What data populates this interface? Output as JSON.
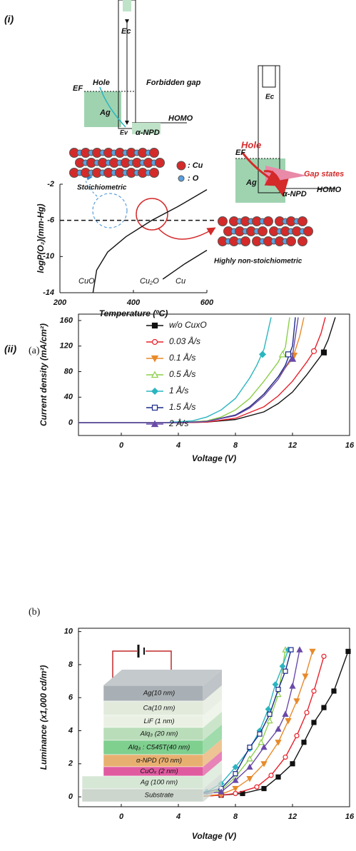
{
  "panel_labels": {
    "i": "(i)",
    "ii": "(ii)",
    "a": "(a)",
    "b": "(b)"
  },
  "diagram": {
    "ef": "EF",
    "ec": "Ec",
    "ev": "Ev",
    "hole": "Hole",
    "forbidden_gap": "Forbidden gap",
    "ag": "Ag",
    "npd": "α-NPD",
    "homo": "HOMO",
    "cu": ": Cu",
    "o": ": O",
    "stoichiometric": "Stoichiometric",
    "gap_states": "Gap states",
    "non_stoichiometric": "Highly non-stoichiometric"
  },
  "device_stack": {
    "layers": [
      "Ag(10 nm)",
      "Ca(10 nm)",
      "LiF (1 nm)",
      "Alq₃ (20 nm)",
      "Alq₃ : C545T(40 nm)",
      "α-NPD (70 nm)",
      "CuOₓ (2 nm)",
      "Ag (100 nm)",
      "Substrate"
    ],
    "colors": [
      "#a9b0b5",
      "#e2eadc",
      "#eaf1e4",
      "#b9dcb9",
      "#7fcf8f",
      "#e8b070",
      "#e05aa0",
      "#d6e7d6",
      "#cdd6cd"
    ]
  },
  "chart_data": [
    {
      "type": "line",
      "xlabel": "Temperature (ºC)",
      "ylabel": "logP(O₂)(mm-Hg)",
      "xlim": [
        200,
        600
      ],
      "ylim": [
        -14,
        -2
      ],
      "xticks": [
        200,
        400,
        600
      ],
      "yticks": [
        -2,
        -6,
        -10,
        -14
      ],
      "hline": -6,
      "annotations": [
        "CuO",
        "Cu₂O",
        "Cu"
      ],
      "series": [
        {
          "color": "#111111",
          "x": [
            290,
            300,
            330,
            380,
            450,
            520,
            600
          ],
          "values": [
            -14,
            -11.5,
            -9.5,
            -7.8,
            -6,
            -4.5,
            -2.6
          ]
        },
        {
          "color": "#111111",
          "x": [
            480,
            540,
            600
          ],
          "values": [
            -12.5,
            -10.8,
            -9.3
          ]
        }
      ]
    },
    {
      "type": "line",
      "xlabel": "Voltage (V)",
      "ylabel": "Current density (mA/cm²)",
      "xlim": [
        -3,
        16
      ],
      "ylim": [
        -20,
        170
      ],
      "xticks": [
        0,
        4,
        8,
        12,
        16
      ],
      "yticks": [
        0,
        40,
        80,
        120,
        160
      ],
      "legend": "upper left",
      "series": [
        {
          "name": "w/o CuxO",
          "color": "#111111",
          "marker": "square",
          "filled": true,
          "x": [
            -3,
            4,
            6,
            8,
            10,
            11,
            12,
            13,
            14,
            14.5,
            15
          ],
          "values": [
            0,
            0,
            1,
            5,
            17,
            30,
            48,
            75,
            105,
            130,
            165
          ],
          "marker_x": [
            14.2
          ],
          "marker_y": [
            110
          ]
        },
        {
          "name": "0.03 Å/s",
          "color": "#e8202a",
          "marker": "circle",
          "filled": false,
          "x": [
            -3,
            4,
            6,
            8,
            10,
            11,
            12,
            13,
            13.5,
            14,
            14.3
          ],
          "values": [
            0,
            0,
            1,
            7,
            25,
            42,
            65,
            95,
            112,
            140,
            165
          ],
          "marker_x": [
            13.5
          ],
          "marker_y": [
            112
          ]
        },
        {
          "name": "0.1 Å/s",
          "color": "#e88a2a",
          "marker": "triangle-down",
          "filled": true,
          "x": [
            -3,
            4,
            6,
            8,
            9,
            10,
            11,
            12,
            12.5,
            12.8
          ],
          "values": [
            0,
            0,
            2,
            12,
            25,
            45,
            72,
            100,
            135,
            165
          ],
          "marker_x": [
            12.1
          ],
          "marker_y": [
            105
          ]
        },
        {
          "name": "0.5 Å/s",
          "color": "#8ccf4a",
          "marker": "triangle-up",
          "filled": false,
          "x": [
            -3,
            4,
            6,
            7,
            8,
            9,
            10,
            11,
            11.5,
            11.8
          ],
          "values": [
            0,
            0,
            3,
            9,
            20,
            38,
            65,
            95,
            118,
            165
          ],
          "marker_x": [
            11.3
          ],
          "marker_y": [
            107
          ]
        },
        {
          "name": "1 Å/s",
          "color": "#2ab5c0",
          "marker": "diamond",
          "filled": true,
          "x": [
            -3,
            3,
            5,
            6,
            7,
            8,
            9,
            9.5,
            10,
            10.5
          ],
          "values": [
            0,
            0,
            3,
            9,
            20,
            38,
            70,
            90,
            115,
            165
          ],
          "marker_x": [
            9.9
          ],
          "marker_y": [
            107
          ]
        },
        {
          "name": "1.5 Å/s",
          "color": "#1a2a8a",
          "marker": "square",
          "filled": false,
          "x": [
            -3,
            4,
            6,
            8,
            9,
            10,
            11,
            11.5,
            12,
            12.2
          ],
          "values": [
            0,
            0,
            2,
            12,
            25,
            45,
            72,
            90,
            120,
            165
          ],
          "marker_x": [
            11.7
          ],
          "marker_y": [
            107
          ]
        },
        {
          "name": "2 Å/s",
          "color": "#6a4aa8",
          "marker": "triangle-up",
          "filled": true,
          "x": [
            -3,
            4,
            6,
            8,
            9,
            10,
            11,
            12,
            12.4
          ],
          "values": [
            0,
            0,
            2,
            11,
            23,
            42,
            68,
            105,
            165
          ],
          "marker_x": [
            12
          ],
          "marker_y": [
            100
          ]
        }
      ]
    },
    {
      "type": "line",
      "xlabel": "Voltage (V)",
      "ylabel": "Luminance (x1,000 cd/m²)",
      "xlim": [
        -3,
        16
      ],
      "ylim": [
        -0.6,
        10.2
      ],
      "xticks": [
        0,
        4,
        8,
        12,
        16
      ],
      "yticks": [
        0,
        2,
        4,
        6,
        8,
        10
      ],
      "series": [
        {
          "color": "#111111",
          "marker": "square",
          "filled": true,
          "x": [
            -2,
            -1,
            1,
            3,
            5,
            7,
            8.5,
            10,
            11,
            12,
            12.8,
            13.5,
            14.2,
            14.9,
            15.9
          ],
          "values": [
            0,
            0,
            0,
            0,
            0,
            0.1,
            0.2,
            0.5,
            1.2,
            2,
            3.3,
            4.5,
            5.4,
            6.4,
            8.8
          ]
        },
        {
          "color": "#e8202a",
          "marker": "circle",
          "filled": false,
          "x": [
            -2,
            -1,
            1,
            3,
            5,
            7,
            8,
            9.5,
            10.5,
            11.5,
            12.3,
            13,
            13.5,
            14.2
          ],
          "values": [
            0,
            0,
            0,
            0,
            0,
            0.1,
            0.2,
            0.6,
            1.3,
            2.4,
            3.7,
            5.1,
            6.4,
            8.5
          ]
        },
        {
          "color": "#e88a2a",
          "marker": "triangle-down",
          "filled": true,
          "x": [
            -2,
            -1,
            1,
            3,
            5,
            7,
            8,
            9,
            10,
            11,
            11.7,
            12.3,
            12.9,
            13.4
          ],
          "values": [
            0,
            0,
            0,
            0,
            0,
            0.15,
            0.5,
            1.1,
            2,
            3.3,
            4.6,
            5.8,
            7.3,
            8.8
          ]
        },
        {
          "color": "#8ccf4a",
          "marker": "triangle-up",
          "filled": false,
          "x": [
            -2,
            -1,
            1,
            3,
            5,
            7,
            8,
            9,
            9.8,
            10.4,
            11,
            11.5
          ],
          "values": [
            0,
            0,
            0,
            0,
            0.1,
            0.4,
            1.2,
            2.3,
            3.3,
            4.6,
            6.2,
            8.9
          ]
        },
        {
          "color": "#2ab5c0",
          "marker": "diamond",
          "filled": true,
          "x": [
            -2,
            -1,
            1,
            3,
            5,
            6,
            7,
            8,
            9,
            9.7,
            10.3,
            10.8,
            11.3,
            11.7
          ],
          "values": [
            0,
            0,
            0,
            0,
            0.1,
            0.3,
            0.8,
            1.8,
            2.9,
            4,
            5.3,
            6.8,
            7.9,
            8.9
          ]
        },
        {
          "color": "#1a2a8a",
          "marker": "square",
          "filled": false,
          "x": [
            -2,
            -1,
            1,
            3,
            5,
            7,
            8,
            9,
            9.7,
            10.4,
            11,
            11.5,
            11.9
          ],
          "values": [
            0,
            0,
            0,
            0,
            0.1,
            0.5,
            1.4,
            3,
            3.8,
            5,
            6.5,
            7.6,
            8.9
          ]
        },
        {
          "color": "#6a4aa8",
          "marker": "triangle-up",
          "filled": true,
          "x": [
            -2,
            -1,
            1,
            3,
            5,
            7,
            8,
            9,
            10,
            11,
            11.5,
            12,
            12.5
          ],
          "values": [
            0,
            0,
            0,
            0,
            0.1,
            0.3,
            1,
            1.8,
            3,
            4.1,
            5,
            6.7,
            8.9
          ]
        }
      ]
    }
  ]
}
